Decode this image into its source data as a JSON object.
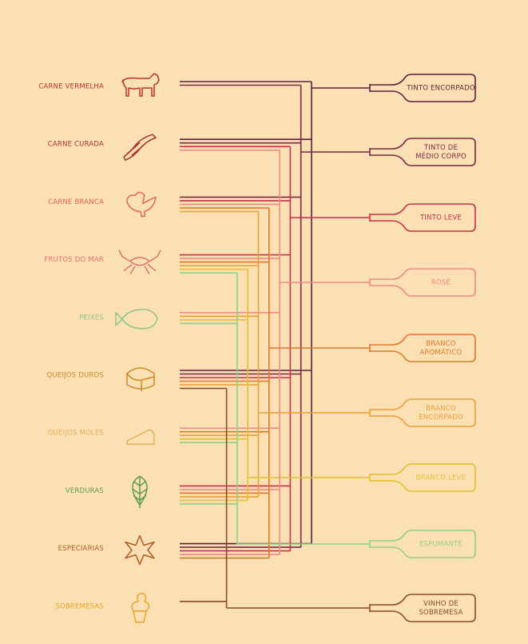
{
  "foods": [
    {
      "label": "CARNE VERMELHA",
      "color": "#b8322e"
    },
    {
      "label": "CARNE CURADA",
      "color": "#a8322c"
    },
    {
      "label": "CARNE BRANCA",
      "color": "#e0625a"
    },
    {
      "label": "FRUTOS DO MAR",
      "color": "#e0706e"
    },
    {
      "label": "PEIXES",
      "color": "#8cc584"
    },
    {
      "label": "QUEIJOS DUROS",
      "color": "#c98a24"
    },
    {
      "label": "QUEIJOS MOLES",
      "color": "#e3b057"
    },
    {
      "label": "VERDURAS",
      "color": "#5e9b4c"
    },
    {
      "label": "ESPECIARIAS",
      "color": "#b45a22"
    },
    {
      "label": "SOBREMESAS",
      "color": "#e8a428"
    }
  ],
  "wines": [
    {
      "lines": [
        "TINTO ENCORPADO"
      ],
      "color": "#5e1f3e"
    },
    {
      "lines": [
        "TINTO DE",
        "MÉDIO CORPO"
      ],
      "color": "#7a2848"
    },
    {
      "lines": [
        "TINTO LEVE"
      ],
      "color": "#c92e4c"
    },
    {
      "lines": [
        "ROSÉ"
      ],
      "color": "#ec8a86"
    },
    {
      "lines": [
        "BRANCO",
        "AROMÁTICO"
      ],
      "color": "#e2762a"
    },
    {
      "lines": [
        "BRANCO",
        "ENCORPADO"
      ],
      "color": "#e9a034"
    },
    {
      "lines": [
        "BRANCO LEVE"
      ],
      "color": "#e2c030"
    },
    {
      "lines": [
        "ESPUMANTE"
      ],
      "color": "#8fcf8a"
    },
    {
      "lines": [
        "VINHO DE",
        "SOBREMESA"
      ],
      "color": "#8a4a28"
    }
  ]
}
